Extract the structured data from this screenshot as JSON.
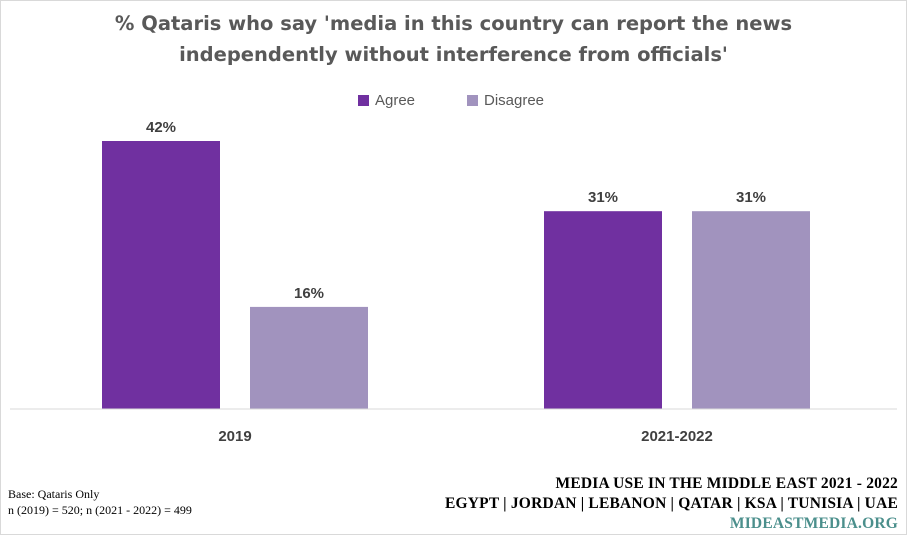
{
  "chart_data": {
    "type": "bar",
    "title_lines": [
      "% Qataris who say 'media in this country can report the news",
      "independently without interference from officials'"
    ],
    "categories": [
      "2019",
      "2021-2022"
    ],
    "series": [
      {
        "name": "Agree",
        "color": "#7030a0",
        "values": [
          42,
          31
        ],
        "labels": [
          "42%",
          "31%"
        ]
      },
      {
        "name": "Disagree",
        "color": "#a193be",
        "values": [
          16,
          31
        ],
        "labels": [
          "16%",
          "31%"
        ]
      }
    ],
    "ylim": [
      0,
      42
    ],
    "grid": false,
    "legend_position": "top-center"
  },
  "footnote": {
    "line1": "Base:  Qataris Only",
    "line2": "n (2019) = 520; n (2021 - 2022) = 499"
  },
  "branding": {
    "line1": "MEDIA USE IN THE MIDDLE EAST 2021 - 2022",
    "line2": "EGYPT | JORDAN | LEBANON | QATAR | KSA | TUNISIA | UAE",
    "url": "MIDEASTMEDIA.ORG"
  }
}
